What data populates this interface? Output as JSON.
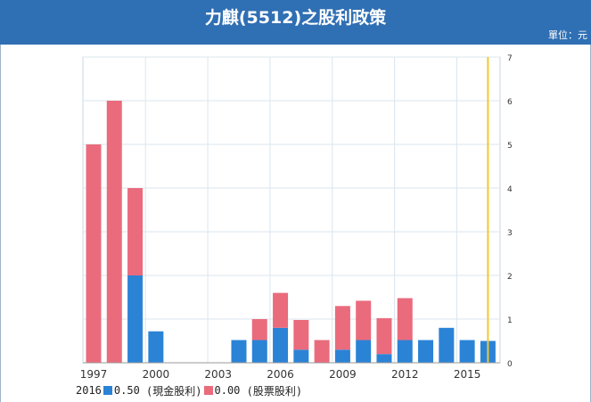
{
  "header": {
    "title": "力麒(5512)之股利政策",
    "unit": "單位：元"
  },
  "colors": {
    "header_bg": "#2f6fb3",
    "cash": "#2b83d6",
    "stock": "#ea6b7c",
    "marker": "#f2c832",
    "grid": "#dbe6ee"
  },
  "legend": {
    "year": "2016",
    "cash_value": "0.50",
    "cash_label": "(現金股利)",
    "stock_value": "0.00",
    "stock_label": "(股票股利)"
  },
  "chart_data": {
    "type": "bar",
    "stacked": true,
    "categories": [
      1997,
      1998,
      1999,
      2000,
      2001,
      2002,
      2003,
      2004,
      2005,
      2006,
      2007,
      2008,
      2009,
      2010,
      2011,
      2012,
      2013,
      2014,
      2015,
      2016
    ],
    "series": [
      {
        "name": "現金股利",
        "color": "#2b83d6",
        "values": [
          0,
          0,
          2.0,
          0.72,
          0,
          0,
          0,
          0.52,
          0.52,
          0.8,
          0.3,
          0,
          0.3,
          0.52,
          0.2,
          0.52,
          0.52,
          0.8,
          0.52,
          0.5
        ]
      },
      {
        "name": "股票股利",
        "color": "#ea6b7c",
        "values": [
          5.0,
          6.0,
          2.0,
          0,
          0,
          0,
          0,
          0,
          0.48,
          0.8,
          0.68,
          0.52,
          1.0,
          0.9,
          0.82,
          0.96,
          0,
          0,
          0,
          0
        ]
      }
    ],
    "x_ticks": [
      1997,
      2000,
      2003,
      2006,
      2009,
      2012,
      2015
    ],
    "y_ticks": [
      0,
      1,
      2,
      3,
      4,
      5,
      6,
      7
    ],
    "ylim": [
      0,
      7
    ],
    "y_axis_side": "right",
    "highlight_year": 2016,
    "grid": true,
    "legend_position": "bottom-left",
    "title": "",
    "xlabel": "",
    "ylabel": ""
  }
}
